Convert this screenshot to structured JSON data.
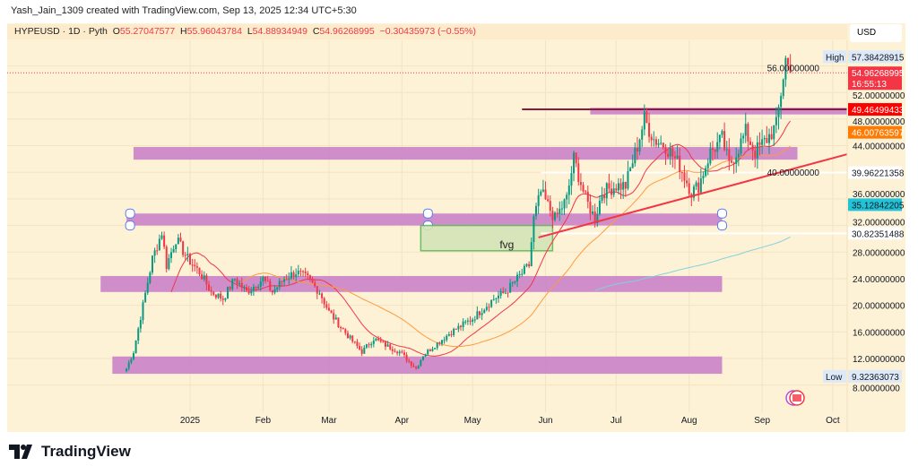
{
  "credit": "Yash_Jain_1309 created with TradingView.com, Sep 13, 2025 12:34 UTC+5:30",
  "legend": {
    "symbol": "HYPEUSD · 1D · Pyth",
    "o_label": "O",
    "o": "55.27047577",
    "h_label": "H",
    "h": "55.96043784",
    "l_label": "L",
    "l": "54.88934949",
    "c_label": "C",
    "c": "54.96268995",
    "change": "−0.30435973 (−0.55%)"
  },
  "currency_button": "USD",
  "logo_text": "TradingView",
  "colors": {
    "background": "#fdf1d6",
    "up": "#089981",
    "down": "#f23645",
    "zone": "#c77dc8",
    "fvg": "#d4e4b8",
    "trendline": "#f23645",
    "ma_fast": "#f23645",
    "ma_mid": "#ff9a3c",
    "ma_slow": "#7fd3dc"
  },
  "chart_data": {
    "type": "candlestick",
    "symbol": "HYPEUSD",
    "interval": "1D",
    "ylim": [
      7,
      59
    ],
    "y_ticks": [
      "8.00000000",
      "12.00000000",
      "16.00000000",
      "20.00000000",
      "24.00000000",
      "28.00000000",
      "32.00000000",
      "36.00000000",
      "40.00000000",
      "44.00000000",
      "48.00000000",
      "52.00000000",
      "56.00000000"
    ],
    "y_tick_values": [
      8,
      12,
      16,
      20,
      24,
      28,
      32,
      36,
      40,
      44,
      48,
      52,
      56
    ],
    "x_ticks": [
      {
        "label": "2025",
        "date": "2025-01-01"
      },
      {
        "label": "Feb",
        "date": "2025-02-01"
      },
      {
        "label": "Mar",
        "date": "2025-03-01"
      },
      {
        "label": "Apr",
        "date": "2025-04-01"
      },
      {
        "label": "May",
        "date": "2025-05-01"
      },
      {
        "label": "Jun",
        "date": "2025-06-01"
      },
      {
        "label": "Jul",
        "date": "2025-07-01"
      },
      {
        "label": "Aug",
        "date": "2025-08-01"
      },
      {
        "label": "Sep",
        "date": "2025-09-01"
      },
      {
        "label": "Oct",
        "date": "2025-10-01"
      }
    ],
    "approx_close_path": [
      [
        "2024-12-05",
        10.5
      ],
      [
        "2024-12-08",
        13
      ],
      [
        "2024-12-12",
        20
      ],
      [
        "2024-12-16",
        27
      ],
      [
        "2024-12-20",
        31
      ],
      [
        "2024-12-22",
        26
      ],
      [
        "2024-12-26",
        30
      ],
      [
        "2024-12-31",
        27
      ],
      [
        "2025-01-05",
        25
      ],
      [
        "2025-01-10",
        22
      ],
      [
        "2025-01-15",
        21
      ],
      [
        "2025-01-20",
        24
      ],
      [
        "2025-01-25",
        22
      ],
      [
        "2025-02-01",
        24
      ],
      [
        "2025-02-05",
        22
      ],
      [
        "2025-02-10",
        24
      ],
      [
        "2025-02-15",
        25
      ],
      [
        "2025-02-20",
        24
      ],
      [
        "2025-02-25",
        22
      ],
      [
        "2025-03-01",
        19
      ],
      [
        "2025-03-10",
        15
      ],
      [
        "2025-03-15",
        13
      ],
      [
        "2025-03-20",
        15
      ],
      [
        "2025-03-25",
        14
      ],
      [
        "2025-03-31",
        13
      ],
      [
        "2025-04-07",
        10.5
      ],
      [
        "2025-04-10",
        12.5
      ],
      [
        "2025-04-15",
        14
      ],
      [
        "2025-04-22",
        16
      ],
      [
        "2025-05-01",
        18
      ],
      [
        "2025-05-10",
        21
      ],
      [
        "2025-05-15",
        22
      ],
      [
        "2025-05-20",
        24
      ],
      [
        "2025-05-25",
        26
      ],
      [
        "2025-05-27",
        33
      ],
      [
        "2025-05-30",
        37
      ],
      [
        "2025-06-05",
        33
      ],
      [
        "2025-06-10",
        36
      ],
      [
        "2025-06-13",
        42
      ],
      [
        "2025-06-18",
        36
      ],
      [
        "2025-06-22",
        33
      ],
      [
        "2025-06-25",
        37
      ],
      [
        "2025-07-01",
        38
      ],
      [
        "2025-07-05",
        38
      ],
      [
        "2025-07-10",
        44
      ],
      [
        "2025-07-13",
        48
      ],
      [
        "2025-07-17",
        45
      ],
      [
        "2025-07-22",
        44
      ],
      [
        "2025-07-28",
        41
      ],
      [
        "2025-08-02",
        37
      ],
      [
        "2025-08-05",
        38
      ],
      [
        "2025-08-10",
        43
      ],
      [
        "2025-08-15",
        45
      ],
      [
        "2025-08-18",
        41
      ],
      [
        "2025-08-21",
        43
      ],
      [
        "2025-08-25",
        46
      ],
      [
        "2025-08-29",
        43
      ],
      [
        "2025-09-03",
        45
      ],
      [
        "2025-09-07",
        47
      ],
      [
        "2025-09-09",
        52
      ],
      [
        "2025-09-11",
        57
      ],
      [
        "2025-09-13",
        54.96
      ]
    ],
    "moving_averages": [
      {
        "color": "#f23645",
        "period": 20
      },
      {
        "color": "#ff9a3c",
        "period": 50
      },
      {
        "color": "#7fd3dc",
        "period": 200
      }
    ],
    "zones": [
      {
        "from": "2024-12-08",
        "to": "2025-09-16",
        "top": 43.8,
        "bottom": 41.9
      },
      {
        "from": "2024-12-05",
        "to": "2025-08-15",
        "top": 33.8,
        "bottom": 32.0,
        "handles": true
      },
      {
        "from": "2024-11-24",
        "to": "2025-08-15",
        "top": 24.4,
        "bottom": 22.0
      },
      {
        "from": "2024-11-29",
        "to": "2025-08-15",
        "top": 12.3,
        "bottom": 9.7
      },
      {
        "from": "2025-06-20",
        "to": "2025-10-07",
        "top": 49.7,
        "bottom": 48.7
      }
    ],
    "fvg": {
      "label": "fvg",
      "from": "2025-04-09",
      "to": "2025-06-04",
      "top": 32.0,
      "bottom": 28.2
    },
    "trendline": {
      "from": [
        "2025-05-29",
        30.2
      ],
      "to": [
        "2025-10-07",
        42.7
      ]
    },
    "resistance_line": {
      "from": "2025-05-22",
      "price": 49.46499433
    },
    "hlines": [
      {
        "from": "2025-05-30",
        "price": 39.96221358
      },
      {
        "from": "2025-05-30",
        "price": 30.82351488
      }
    ],
    "price_labels": [
      {
        "tag": "High",
        "value": "57.38428915",
        "price": 57.38,
        "bg": "#dde9f7",
        "fg": "#131722"
      },
      {
        "value": "54.96268995",
        "sub": "16:55:13",
        "price": 54.96,
        "bg": "#f23645",
        "fg": "#fff"
      },
      {
        "value": "49.46499433",
        "price": 49.46,
        "bg": "#ff0000",
        "fg": "#fff"
      },
      {
        "value": "46.00763597",
        "price": 46.01,
        "bg": "#ff7a00",
        "fg": "#fff"
      },
      {
        "value": "39.96221358",
        "price": 39.96,
        "bg": "#ffffff",
        "fg": "#131722"
      },
      {
        "value": "35.12842205",
        "price": 35.13,
        "bg": "#22c3d6",
        "fg": "#131722"
      },
      {
        "value": "30.82351488",
        "price": 30.82,
        "bg": "#ffffff",
        "fg": "#131722"
      },
      {
        "tag": "Low",
        "value": "9.32363073",
        "price": 9.32,
        "bg": "#dde9f7",
        "fg": "#131722"
      }
    ]
  }
}
